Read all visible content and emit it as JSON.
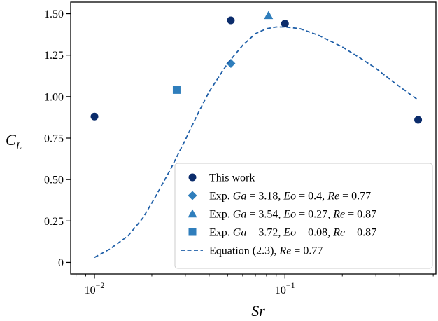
{
  "chart_data": {
    "type": "scatter",
    "xlabel": "Sr",
    "ylabel_main": "C",
    "ylabel_sub": "L",
    "xscale": "log",
    "xlim": [
      0.0075,
      0.62
    ],
    "ylim": [
      -0.07,
      1.57
    ],
    "x_ticks": [
      {
        "value": 0.01,
        "base": "10",
        "exp": "−2"
      },
      {
        "value": 0.1,
        "base": "10",
        "exp": "−1"
      }
    ],
    "y_ticks": [
      {
        "value": 0,
        "label": "0"
      },
      {
        "value": 0.25,
        "label": "0.25"
      },
      {
        "value": 0.5,
        "label": "0.50"
      },
      {
        "value": 0.75,
        "label": "0.75"
      },
      {
        "value": 1.0,
        "label": "1.00"
      },
      {
        "value": 1.25,
        "label": "1.25"
      },
      {
        "value": 1.5,
        "label": "1.50"
      }
    ],
    "grid": false,
    "legend_position": "lower-right",
    "series": [
      {
        "key": "this-work",
        "kind": "scatter",
        "marker": "circle",
        "color": "#0b2c6b",
        "legend": [
          {
            "t": "This work",
            "i": false
          }
        ],
        "points": [
          [
            0.01,
            0.88
          ],
          [
            0.052,
            1.46
          ],
          [
            0.1,
            1.44
          ],
          [
            0.5,
            0.86
          ]
        ]
      },
      {
        "key": "exp-ga-3-18",
        "kind": "scatter",
        "marker": "diamond",
        "color": "#2f7ebc",
        "legend": [
          {
            "t": "Exp. ",
            "i": false
          },
          {
            "t": "Ga",
            "i": true
          },
          {
            "t": " = 3.18, ",
            "i": false
          },
          {
            "t": "Eo",
            "i": true
          },
          {
            "t": " = 0.4, ",
            "i": false
          },
          {
            "t": "Re",
            "i": true
          },
          {
            "t": " = 0.77",
            "i": false
          }
        ],
        "points": [
          [
            0.052,
            1.2
          ]
        ]
      },
      {
        "key": "exp-ga-3-54",
        "kind": "scatter",
        "marker": "triangle",
        "color": "#2f7ebc",
        "legend": [
          {
            "t": "Exp. ",
            "i": false
          },
          {
            "t": "Ga",
            "i": true
          },
          {
            "t": " = 3.54, ",
            "i": false
          },
          {
            "t": "Eo",
            "i": true
          },
          {
            "t": " = 0.27, ",
            "i": false
          },
          {
            "t": "Re",
            "i": true
          },
          {
            "t": " = 0.87",
            "i": false
          }
        ],
        "points": [
          [
            0.082,
            1.49
          ]
        ]
      },
      {
        "key": "exp-ga-3-72",
        "kind": "scatter",
        "marker": "square",
        "color": "#2f7ebc",
        "legend": [
          {
            "t": "Exp. ",
            "i": false
          },
          {
            "t": "Ga",
            "i": true
          },
          {
            "t": " = 3.72, ",
            "i": false
          },
          {
            "t": "Eo",
            "i": true
          },
          {
            "t": " = 0.08, ",
            "i": false
          },
          {
            "t": "Re",
            "i": true
          },
          {
            "t": " = 0.87",
            "i": false
          }
        ],
        "points": [
          [
            0.027,
            1.04
          ]
        ]
      },
      {
        "key": "equation-2-3",
        "kind": "line",
        "dash": true,
        "color": "#1f5fa8",
        "legend": [
          {
            "t": "Equation (2.3), ",
            "i": false
          },
          {
            "t": "Re",
            "i": true
          },
          {
            "t": " = 0.77",
            "i": false
          }
        ],
        "points": [
          [
            0.01,
            0.03
          ],
          [
            0.012,
            0.08
          ],
          [
            0.015,
            0.16
          ],
          [
            0.018,
            0.27
          ],
          [
            0.021,
            0.4
          ],
          [
            0.025,
            0.56
          ],
          [
            0.03,
            0.74
          ],
          [
            0.035,
            0.9
          ],
          [
            0.04,
            1.03
          ],
          [
            0.05,
            1.2
          ],
          [
            0.06,
            1.31
          ],
          [
            0.07,
            1.38
          ],
          [
            0.08,
            1.41
          ],
          [
            0.09,
            1.42
          ],
          [
            0.1,
            1.42
          ],
          [
            0.12,
            1.41
          ],
          [
            0.15,
            1.37
          ],
          [
            0.2,
            1.3
          ],
          [
            0.25,
            1.23
          ],
          [
            0.3,
            1.17
          ],
          [
            0.35,
            1.11
          ],
          [
            0.4,
            1.06
          ],
          [
            0.5,
            0.98
          ]
        ]
      }
    ]
  }
}
